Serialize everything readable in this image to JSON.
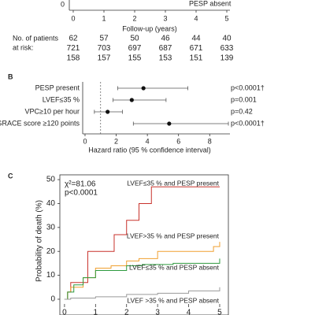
{
  "panel_a": {
    "yticks": [
      0
    ],
    "xlim": [
      0,
      5
    ],
    "xticks": [
      0,
      1,
      2,
      3,
      4,
      5
    ],
    "xlabel": "Follow-up (years)",
    "legend": {
      "name": "PESP absent",
      "color": "#2e9a3e"
    },
    "at_risk": {
      "label": [
        "No. of patients",
        "at risk:"
      ],
      "rows": [
        {
          "color": "#c8322b",
          "values": [
            62,
            57,
            50,
            46,
            44,
            40
          ]
        },
        {
          "color": "#8a8a8a",
          "values": [
            721,
            703,
            697,
            687,
            671,
            633
          ]
        },
        {
          "color": "#2e9a3e",
          "values": [
            158,
            157,
            155,
            153,
            151,
            139
          ]
        }
      ]
    }
  },
  "panel_b": {
    "label": "B",
    "type": "forest",
    "xlabel": "Hazard ratio (95 % confidence interval)",
    "xlim": [
      -0.15,
      9.3
    ],
    "xticks": [
      0,
      2,
      4,
      6,
      8
    ],
    "reference": 1,
    "rows": [
      {
        "name": "PESP present",
        "hr": 3.75,
        "ci": [
          2.1,
          6.6
        ],
        "p": "p<0.0001†"
      },
      {
        "name": "LVEF≤35 %",
        "hr": 3.0,
        "ci": [
          1.8,
          5.2
        ],
        "p": "p=0.001"
      },
      {
        "name": "VPC≥10 per hour",
        "hr": 1.45,
        "ci": [
          0.6,
          2.4
        ],
        "p": "p=0.42"
      },
      {
        "name": "GRACE score ≥120 points",
        "hr": 5.4,
        "ci": [
          3.1,
          9.2
        ],
        "p": "p<0.0001†"
      }
    ]
  },
  "panel_c": {
    "label": "C",
    "type": "line",
    "step": true,
    "ylabel": "Probability of death (%)",
    "annotations": [
      "χ²=81.06",
      "p<0.0001"
    ],
    "xlim": [
      -0.15,
      5.28
    ],
    "ylim": [
      -3.3,
      52
    ],
    "xticks": [
      0,
      1,
      2,
      3,
      4,
      5
    ],
    "yticks": [
      0,
      10,
      20,
      30,
      40,
      50
    ],
    "series": [
      {
        "name": "LVEF≤35 % and PESP present",
        "color": "#c8322b",
        "x": [
          0,
          0.1,
          0.2,
          0.75,
          1.6,
          2.0,
          2.4,
          2.8,
          5.0
        ],
        "values": [
          0,
          3,
          7,
          20,
          27,
          33,
          40,
          47,
          47
        ]
      },
      {
        "name": "LVEF>35 % and PESP present",
        "color": "#f0a030",
        "x": [
          0,
          0.1,
          0.2,
          0.6,
          1.0,
          1.5,
          2.0,
          2.4,
          3.0,
          4.8,
          5.0
        ],
        "values": [
          0,
          3,
          5,
          9,
          13,
          14,
          16,
          17,
          20,
          22,
          24
        ]
      },
      {
        "name": "LVEF≤35 % and PESP absent",
        "color": "#2e9a3e",
        "x": [
          0,
          0.1,
          0.3,
          0.6,
          1.0,
          2.0,
          2.5,
          3.5,
          5.0
        ],
        "values": [
          0,
          3,
          6,
          9,
          12,
          14,
          14.5,
          15,
          17
        ]
      },
      {
        "name": "LVEF >35 % and PESP absent",
        "color": "#9a9a9a",
        "x": [
          0,
          0.2,
          1.0,
          2.0,
          3.0,
          4.0,
          5.0
        ],
        "values": [
          0,
          0.5,
          1,
          2,
          2.5,
          3.5,
          5
        ]
      }
    ]
  }
}
